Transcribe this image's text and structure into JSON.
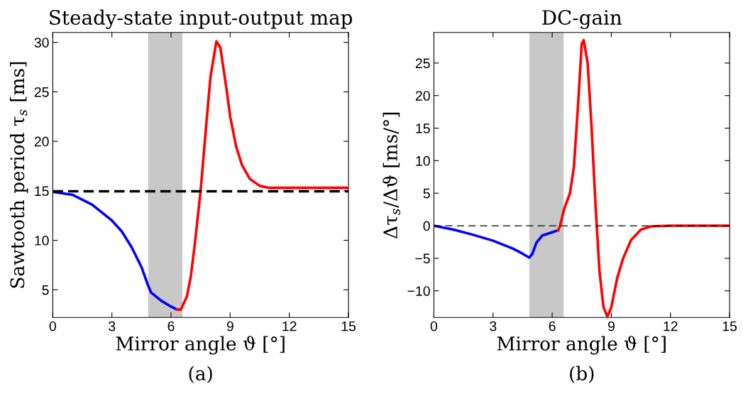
{
  "chart_data": [
    {
      "type": "line",
      "title": "Steady-state input-output map",
      "xlabel": "Mirror angle ϑ [°]",
      "ylabel": "Sawtooth period τ$_{s}$ [ms]",
      "annotations": [
        "(a)"
      ],
      "xlim": [
        0,
        15
      ],
      "xticks": [
        0,
        3,
        6,
        9,
        12,
        15
      ],
      "ylim": [
        2.2,
        31
      ],
      "yticks": [
        5,
        10,
        15,
        20,
        25,
        30
      ],
      "grid": false,
      "legend": false,
      "ref_lines": [
        {
          "axis": "y",
          "value": 14.95,
          "color": "#000000",
          "line_style": "dashed"
        }
      ],
      "bands": [
        {
          "axis": "x",
          "from": 4.84,
          "to": 6.58,
          "color": "#c8c8c8"
        }
      ],
      "series": [
        {
          "color": "#0000ff",
          "x": [
            0,
            1,
            2,
            3,
            3.5,
            4,
            4.5,
            4.84,
            5,
            5.5,
            6,
            6.3
          ],
          "values": [
            14.9,
            14.6,
            13.6,
            12,
            10.9,
            9.3,
            7.3,
            5.4,
            4.7,
            3.9,
            3.3,
            3.0
          ]
        },
        {
          "color": "#ff0000",
          "x": [
            6.3,
            6.5,
            6.8,
            7,
            7.2,
            7.5,
            7.8,
            8,
            8.3,
            8.5,
            8.8,
            9,
            9.3,
            9.6,
            10,
            10.5,
            11,
            12,
            15
          ],
          "values": [
            3.0,
            3.0,
            4.3,
            6.3,
            9.5,
            15,
            22,
            26.5,
            30.1,
            29.5,
            25.5,
            22.5,
            19.5,
            17.6,
            16.2,
            15.5,
            15.3,
            15.3,
            15.3
          ]
        }
      ]
    },
    {
      "type": "line",
      "title": "DC-gain",
      "xlabel": "Mirror angle ϑ [°]",
      "ylabel": "Δτ$_{s}$/Δϑ [ms/°]",
      "annotations": [
        "(b)"
      ],
      "xlim": [
        0,
        15
      ],
      "xticks": [
        0,
        3,
        6,
        9,
        12,
        15
      ],
      "ylim": [
        -14.1,
        29.7
      ],
      "yticks": [
        -10,
        -5,
        0,
        5,
        10,
        15,
        20,
        25
      ],
      "grid": false,
      "legend": false,
      "ref_lines": [
        {
          "axis": "y",
          "value": 0,
          "color": "#000000",
          "line_style": "dashed"
        }
      ],
      "bands": [
        {
          "axis": "x",
          "from": 4.84,
          "to": 6.58,
          "color": "#c8c8c8"
        }
      ],
      "series": [
        {
          "color": "#0000ff",
          "x": [
            0,
            1,
            2,
            3,
            4,
            4.5,
            4.84,
            5,
            5.2,
            5.5,
            6,
            6.3
          ],
          "values": [
            0,
            -0.6,
            -1.4,
            -2.3,
            -3.5,
            -4.3,
            -4.9,
            -4.3,
            -2.6,
            -1.5,
            -1.0,
            -0.7
          ]
        },
        {
          "color": "#ff0000",
          "x": [
            6.3,
            6.4,
            6.6,
            6.9,
            7.1,
            7.3,
            7.5,
            7.6,
            7.8,
            8.0,
            8.2,
            8.4,
            8.6,
            8.8,
            9,
            9.3,
            9.6,
            10,
            10.5,
            11,
            12,
            15
          ],
          "values": [
            -0.7,
            0,
            2.5,
            5,
            9,
            18,
            28,
            28.5,
            25,
            15,
            3,
            -7,
            -12.5,
            -14,
            -12.5,
            -8,
            -5,
            -2.2,
            -0.6,
            -0.1,
            0,
            0
          ]
        }
      ]
    }
  ]
}
